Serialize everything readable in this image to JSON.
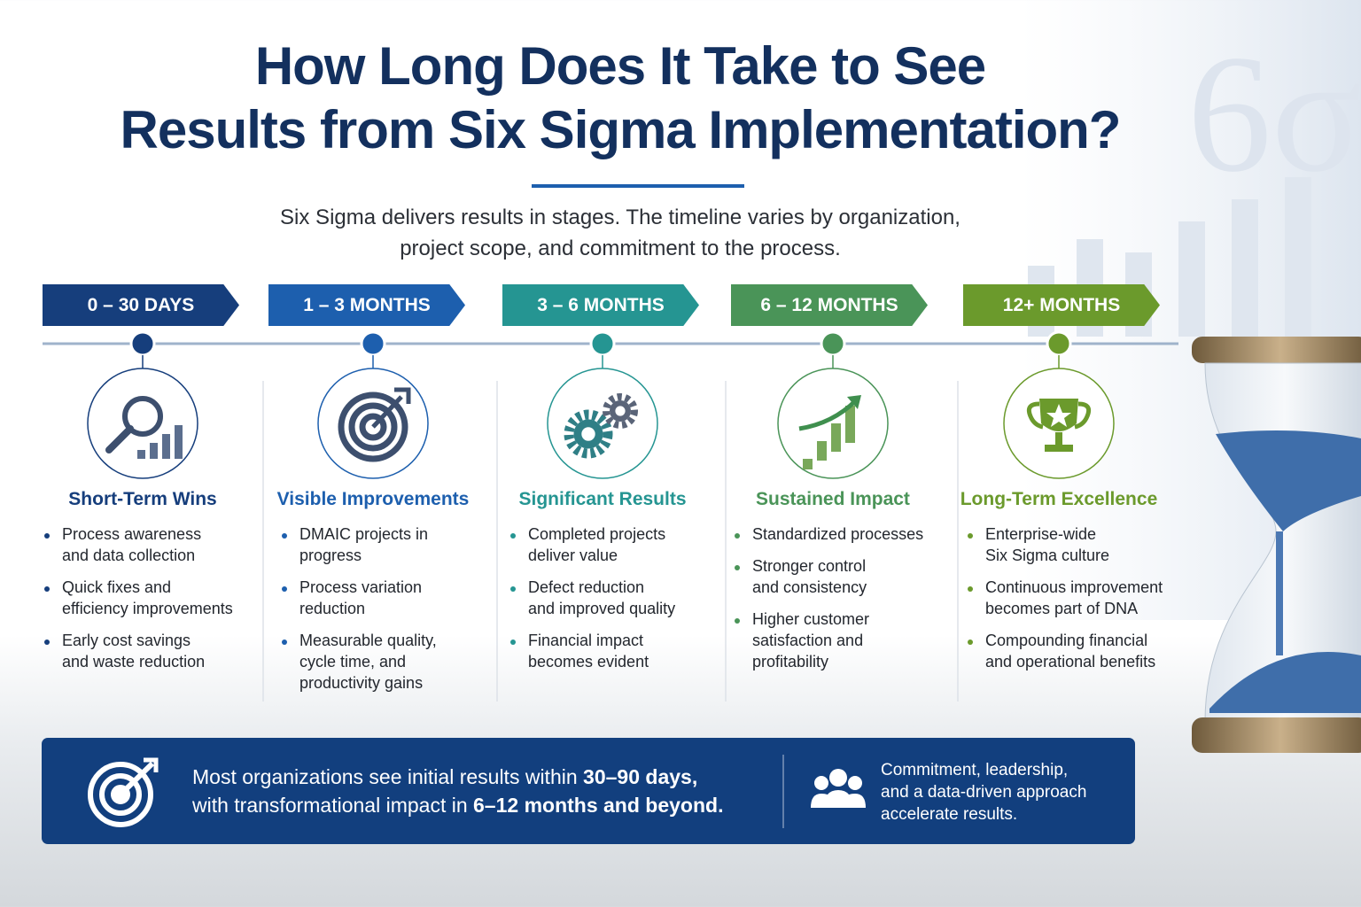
{
  "header": {
    "title_lines": [
      "How Long Does It Take to See",
      "Results from Six Sigma Implementation?"
    ],
    "subtitle_lines": [
      "Six Sigma delivers results in stages. The timeline varies by organization,",
      "project scope, and commitment to the process."
    ],
    "watermark": "6σ"
  },
  "stages": [
    {
      "period": "0 – 30 DAYS",
      "heading": "Short-Term Wins",
      "color": "#163e7c",
      "bullets": [
        [
          "Process awareness",
          "and data collection"
        ],
        [
          "Quick fixes and",
          "efficiency improvements"
        ],
        [
          "Early cost savings",
          "and waste reduction"
        ]
      ]
    },
    {
      "period": "1 – 3 MONTHS",
      "heading": "Visible Improvements",
      "color": "#1d5fae",
      "bullets": [
        [
          "DMAIC projects in",
          "progress"
        ],
        [
          "Process variation",
          "reduction"
        ],
        [
          "Measurable quality,",
          "cycle time, and",
          "productivity gains"
        ]
      ]
    },
    {
      "period": "3 – 6 MONTHS",
      "heading": "Significant Results",
      "color": "#259592",
      "bullets": [
        [
          "Completed projects",
          "deliver value"
        ],
        [
          "Defect reduction",
          "and improved quality"
        ],
        [
          "Financial impact",
          "becomes evident"
        ]
      ]
    },
    {
      "period": "6 – 12 MONTHS",
      "heading": "Sustained Impact",
      "color": "#4a9458",
      "bullets": [
        [
          "Standardized processes"
        ],
        [
          "Stronger control",
          "and consistency"
        ],
        [
          "Higher customer",
          "satisfaction and",
          "profitability"
        ]
      ]
    },
    {
      "period": "12+ MONTHS",
      "heading": "Long-Term Excellence",
      "color": "#6b9a2c",
      "bullets": [
        [
          "Enterprise-wide",
          "Six Sigma culture"
        ],
        [
          "Continuous improvement",
          "becomes part of DNA"
        ],
        [
          "Compounding financial",
          "and operational benefits"
        ]
      ]
    }
  ],
  "footer": {
    "summary_lines": [
      [
        "Most organizations see initial results within ",
        "30–90 days,"
      ],
      [
        "with transformational impact in ",
        "6–12 months and beyond."
      ]
    ],
    "note_lines": [
      "Commitment, leadership,",
      "and a data-driven approach",
      "accelerate results."
    ]
  }
}
